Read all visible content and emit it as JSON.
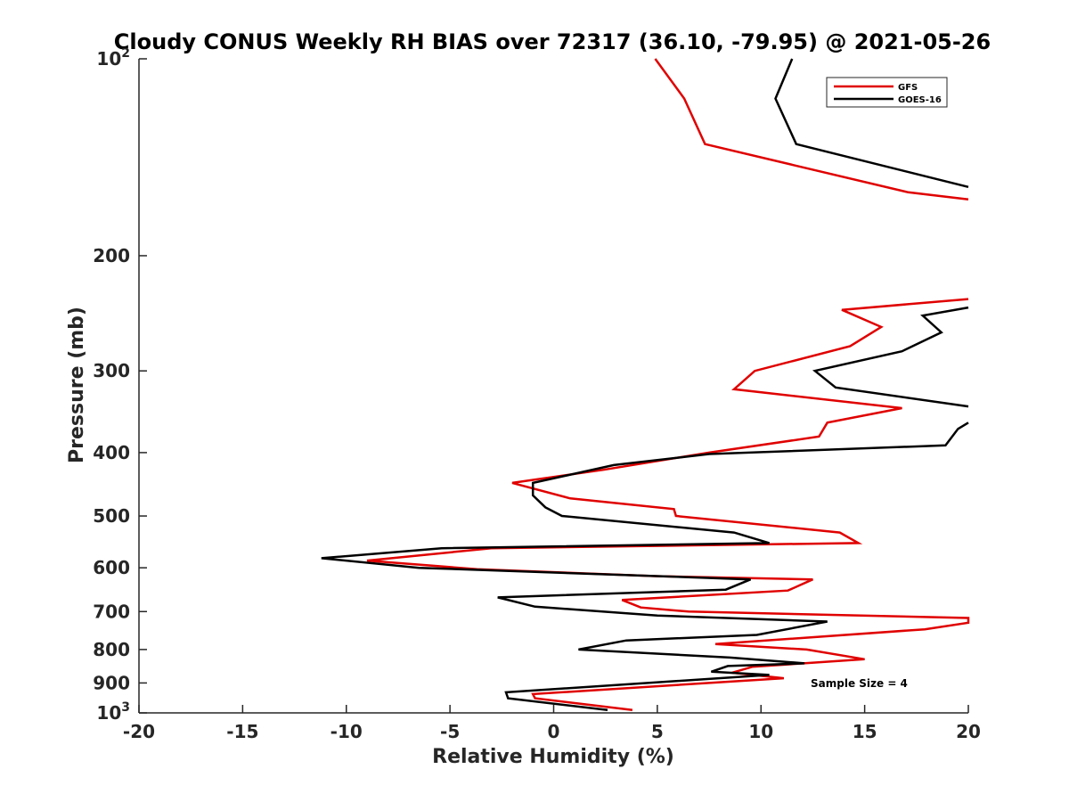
{
  "chart_data": {
    "type": "line",
    "title": "Cloudy CONUS Weekly RH BIAS over 72317 (36.10, -79.95) @ 2021-05-26",
    "xlabel": "Relative Humidity (%)",
    "ylabel": "Pressure (mb)",
    "xlim": [
      -20,
      20
    ],
    "ylim": [
      100,
      1000
    ],
    "y_scale": "log",
    "y_reversed": true,
    "grid": false,
    "legend_position": "top-right",
    "x_ticks": [
      {
        "value": -20,
        "label": "-20"
      },
      {
        "value": -15,
        "label": "-15"
      },
      {
        "value": -10,
        "label": "-10"
      },
      {
        "value": -5,
        "label": "-5"
      },
      {
        "value": 0,
        "label": "0"
      },
      {
        "value": 5,
        "label": "5"
      },
      {
        "value": 10,
        "label": "10"
      },
      {
        "value": 15,
        "label": "15"
      },
      {
        "value": 20,
        "label": "20"
      }
    ],
    "y_ticks": [
      {
        "value": 100,
        "base": "10",
        "exp": "2"
      },
      {
        "value": 200,
        "label": "200"
      },
      {
        "value": 300,
        "label": "300"
      },
      {
        "value": 400,
        "label": "400"
      },
      {
        "value": 500,
        "label": "500"
      },
      {
        "value": 600,
        "label": "600"
      },
      {
        "value": 700,
        "label": "700"
      },
      {
        "value": 800,
        "label": "800"
      },
      {
        "value": 900,
        "label": "900"
      },
      {
        "value": 1000,
        "base": "10",
        "exp": "3"
      }
    ],
    "annotation": "Sample Size = 4",
    "series": [
      {
        "name": "GFS",
        "color": "#e00000",
        "points": [
          [
            4.9,
            100
          ],
          [
            6.3,
            115
          ],
          [
            7.3,
            135
          ],
          [
            17.1,
            160
          ],
          [
            20.0,
            164
          ],
          [
            null,
            null
          ],
          [
            20.0,
            233
          ],
          [
            13.9,
            242
          ],
          [
            15.8,
            257
          ],
          [
            14.3,
            275
          ],
          [
            9.7,
            300
          ],
          [
            8.7,
            320
          ],
          [
            16.8,
            342
          ],
          [
            13.2,
            360
          ],
          [
            12.8,
            378
          ],
          [
            7.5,
            400
          ],
          [
            2.4,
            425
          ],
          [
            -2.0,
            445
          ],
          [
            0.8,
            470
          ],
          [
            5.8,
            488
          ],
          [
            5.9,
            500
          ],
          [
            13.8,
            530
          ],
          [
            14.7,
            550
          ],
          [
            -3.0,
            560
          ],
          [
            -9.0,
            585
          ],
          [
            -6.0,
            595
          ],
          [
            -3.7,
            603
          ],
          [
            5.0,
            618
          ],
          [
            12.5,
            625
          ],
          [
            11.3,
            650
          ],
          [
            3.3,
            672
          ],
          [
            4.2,
            690
          ],
          [
            6.5,
            700
          ],
          [
            20.0,
            716
          ],
          [
            20.0,
            728
          ],
          [
            17.9,
            745
          ],
          [
            7.8,
            785
          ],
          [
            12.2,
            800
          ],
          [
            15.0,
            828
          ],
          [
            9.6,
            850
          ],
          [
            8.6,
            868
          ],
          [
            11.1,
            885
          ],
          [
            -1.0,
            936
          ],
          [
            -0.9,
            950
          ],
          [
            3.8,
            990
          ]
        ]
      },
      {
        "name": "GOES-16",
        "color": "#000000",
        "points": [
          [
            11.5,
            100
          ],
          [
            10.7,
            115
          ],
          [
            11.7,
            135
          ],
          [
            20.0,
            157
          ],
          [
            null,
            null
          ],
          [
            20.0,
            240
          ],
          [
            17.8,
            247
          ],
          [
            18.7,
            262
          ],
          [
            16.8,
            280
          ],
          [
            12.6,
            300
          ],
          [
            13.6,
            318
          ],
          [
            20.0,
            340
          ],
          [
            null,
            null
          ],
          [
            20.0,
            360
          ],
          [
            19.5,
            368
          ],
          [
            18.9,
            390
          ],
          [
            7.5,
            402
          ],
          [
            2.9,
            418
          ],
          [
            -1.0,
            445
          ],
          [
            -1.0,
            465
          ],
          [
            -0.4,
            485
          ],
          [
            0.4,
            500
          ],
          [
            8.7,
            530
          ],
          [
            10.4,
            550
          ],
          [
            -5.4,
            560
          ],
          [
            -11.2,
            580
          ],
          [
            -6.5,
            600
          ],
          [
            9.5,
            625
          ],
          [
            8.3,
            648
          ],
          [
            -2.7,
            666
          ],
          [
            -0.9,
            688
          ],
          [
            5.0,
            710
          ],
          [
            13.2,
            725
          ],
          [
            9.8,
            760
          ],
          [
            3.5,
            775
          ],
          [
            1.2,
            800
          ],
          [
            8.5,
            823
          ],
          [
            12.1,
            840
          ],
          [
            8.4,
            848
          ],
          [
            7.6,
            865
          ],
          [
            10.4,
            875
          ],
          [
            -2.3,
            930
          ],
          [
            -2.2,
            950
          ],
          [
            2.6,
            990
          ]
        ]
      }
    ]
  }
}
